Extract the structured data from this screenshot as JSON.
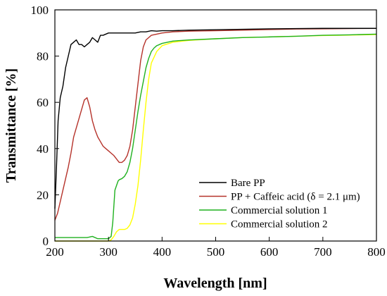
{
  "chart_data": {
    "type": "line",
    "title": "",
    "xlabel": "Wavelength [nm]",
    "ylabel": "Transmittance [%]",
    "xlim": [
      200,
      800
    ],
    "ylim": [
      0,
      100
    ],
    "x_ticks": [
      200,
      300,
      400,
      500,
      600,
      700,
      800
    ],
    "y_ticks": [
      0,
      20,
      40,
      60,
      80,
      100
    ],
    "grid": false,
    "legend_position": "lower-right",
    "series": [
      {
        "name": "Bare PP",
        "color": "#000000",
        "x": [
          200,
          203,
          206,
          210,
          215,
          220,
          225,
          230,
          235,
          240,
          245,
          250,
          255,
          260,
          265,
          270,
          275,
          280,
          285,
          290,
          300,
          310,
          320,
          330,
          340,
          350,
          360,
          370,
          380,
          390,
          400,
          420,
          450,
          500,
          550,
          600,
          650,
          700,
          750,
          800
        ],
        "y": [
          14,
          32,
          52,
          62,
          67,
          75,
          80,
          85,
          86,
          87,
          85,
          85,
          84,
          85,
          86,
          88,
          87,
          86,
          89,
          89,
          90,
          90,
          90,
          90,
          90,
          90,
          90.5,
          90.5,
          91,
          90.8,
          91,
          91,
          91.2,
          91.4,
          91.6,
          91.8,
          91.9,
          92,
          92,
          92
        ]
      },
      {
        "name": "PP + Caffeic acid (δ = 2.1 μm)",
        "color": "#b5322a",
        "x": [
          200,
          205,
          210,
          215,
          220,
          225,
          230,
          235,
          240,
          245,
          250,
          255,
          260,
          265,
          270,
          275,
          280,
          285,
          290,
          295,
          300,
          305,
          310,
          315,
          320,
          325,
          330,
          335,
          340,
          345,
          350,
          355,
          360,
          365,
          370,
          375,
          380,
          390,
          400,
          420,
          450,
          500,
          550,
          600,
          650,
          700,
          750,
          800
        ],
        "y": [
          9,
          12,
          17,
          22,
          27,
          32,
          38,
          45,
          49,
          53,
          57,
          61,
          62,
          58,
          52,
          48,
          45,
          43,
          41,
          40,
          39,
          38,
          37,
          35.5,
          34,
          34,
          35,
          37,
          41,
          48,
          58,
          68,
          78,
          84,
          87,
          88,
          89,
          89.5,
          90,
          90.5,
          90.8,
          91,
          91.2,
          91.5,
          91.7,
          91.8,
          91.9,
          92
        ]
      },
      {
        "name": "Commercial solution 1",
        "color": "#1fb11f",
        "x": [
          200,
          250,
          260,
          270,
          280,
          290,
          295,
          300,
          305,
          308,
          310,
          312,
          315,
          318,
          320,
          325,
          330,
          335,
          340,
          345,
          350,
          355,
          360,
          365,
          370,
          375,
          380,
          385,
          390,
          400,
          420,
          450,
          500,
          550,
          600,
          650,
          700,
          750,
          800
        ],
        "y": [
          1.5,
          1.5,
          1.5,
          2,
          1,
          1,
          1,
          1,
          2,
          8,
          15,
          22,
          24,
          26,
          26.5,
          27,
          28,
          30,
          34,
          40,
          48,
          56,
          63,
          69,
          75,
          79,
          82,
          83.5,
          84.5,
          85.5,
          86.5,
          87,
          87.5,
          88,
          88.3,
          88.6,
          89,
          89.2,
          89.5
        ]
      },
      {
        "name": "Commercial solution 2",
        "color": "#ffff00",
        "x": [
          200,
          250,
          300,
          305,
          310,
          315,
          320,
          325,
          330,
          335,
          340,
          345,
          350,
          355,
          360,
          365,
          370,
          375,
          380,
          390,
          400,
          420,
          450,
          500,
          550,
          600,
          650,
          700,
          750,
          800
        ],
        "y": [
          0,
          0,
          0,
          0.5,
          2,
          4,
          5,
          5,
          5,
          5.5,
          7,
          10,
          16,
          24,
          35,
          48,
          60,
          70,
          77,
          82,
          84.5,
          86,
          86.8,
          87.5,
          88,
          88.3,
          88.6,
          88.9,
          89.1,
          89.3
        ]
      }
    ]
  }
}
